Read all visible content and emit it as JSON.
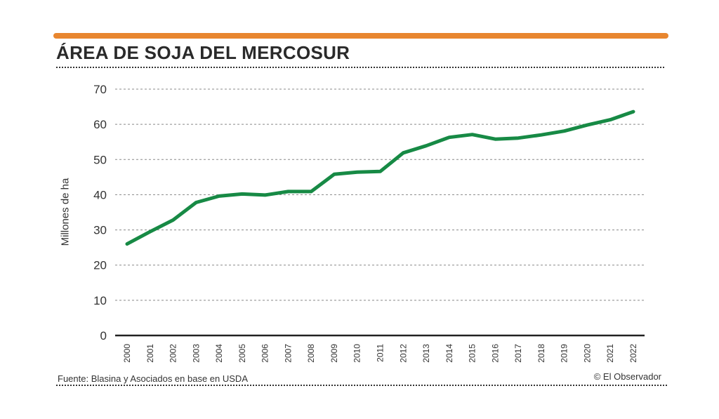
{
  "colors": {
    "accent_bar": "#e8862f",
    "series_line": "#178a45",
    "grid": "#888888"
  },
  "header": {
    "title": "ÁREA DE SOJA DEL MERCOSUR"
  },
  "footer": {
    "source": "Fuente: Blasina y Asociados en base en USDA",
    "credit": "© El Observador"
  },
  "chart_data": {
    "type": "line",
    "title": "ÁREA DE SOJA DEL MERCOSUR",
    "xlabel": "",
    "ylabel": "Millones de ha",
    "ylim": [
      0,
      70
    ],
    "yticks": [
      "0",
      "10",
      "20",
      "30",
      "40",
      "50",
      "60",
      "70"
    ],
    "grid": true,
    "x": [
      "2000",
      "2001",
      "2002",
      "2003",
      "2004",
      "2005",
      "2006",
      "2007",
      "2008",
      "2009",
      "2010",
      "2011",
      "2012",
      "2013",
      "2014",
      "2015",
      "2016",
      "2017",
      "2018",
      "2019",
      "2020",
      "2021",
      "2022"
    ],
    "series": [
      {
        "values": [
          26.0,
          29.5,
          32.8,
          37.8,
          39.6,
          40.2,
          39.9,
          40.9,
          40.9,
          45.8,
          46.4,
          46.6,
          51.9,
          53.9,
          56.3,
          57.1,
          55.8,
          56.1,
          57.0,
          58.1,
          59.8,
          61.3,
          63.6
        ]
      }
    ]
  }
}
